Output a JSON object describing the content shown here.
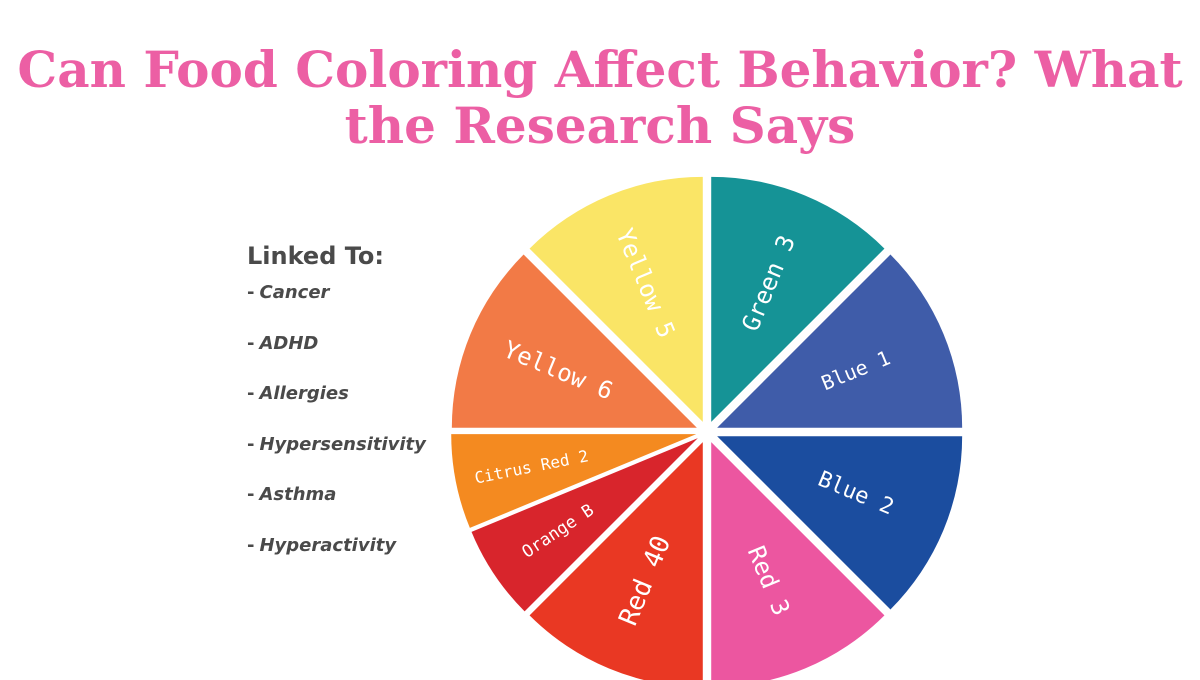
{
  "title": {
    "line1": "Can Food Coloring Affect Behavior? What",
    "line2": "the Research Says"
  },
  "legend": {
    "heading": "Linked To:",
    "items": [
      "Cancer",
      "ADHD",
      "Allergies",
      "Hypersensitivity",
      "Asthma",
      "Hyperactivity"
    ]
  },
  "chart_data": {
    "type": "pie",
    "title": "Can Food Coloring Affect Behavior? What the Research Says",
    "slices": [
      {
        "label": "Green 3",
        "value": 45,
        "color": "#159396"
      },
      {
        "label": "Blue 1",
        "value": 45,
        "color": "#3f5ca9"
      },
      {
        "label": "Blue 2",
        "value": 45,
        "color": "#1b4d9f"
      },
      {
        "label": "Red 3",
        "value": 45,
        "color": "#ec56a0"
      },
      {
        "label": "Red 40",
        "value": 45,
        "color": "#e93823"
      },
      {
        "label": "Orange B",
        "value": 22.5,
        "color": "#d8252c"
      },
      {
        "label": "Citrus Red 2",
        "value": 22.5,
        "color": "#f48a20"
      },
      {
        "label": "Yellow 6",
        "value": 45,
        "color": "#f27a46"
      },
      {
        "label": "Yellow 5",
        "value": 45,
        "color": "#fae566"
      }
    ],
    "start": "12 o'clock",
    "direction": "clockwise"
  }
}
